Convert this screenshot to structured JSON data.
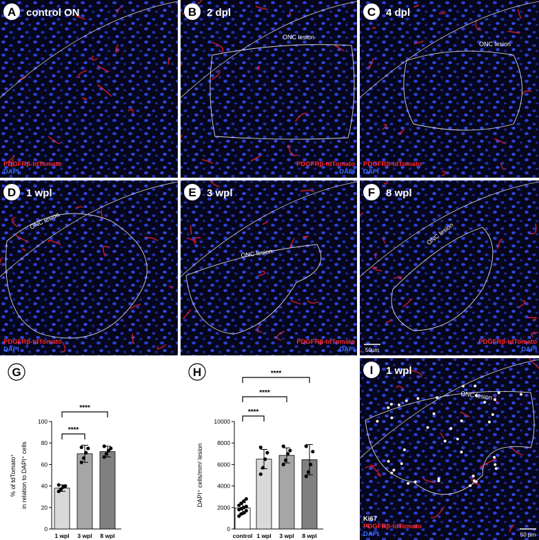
{
  "panels": [
    {
      "letter": "A",
      "title": "control ON",
      "markers": [
        "PDGFRβ-tdTomato",
        "DAPI"
      ]
    },
    {
      "letter": "B",
      "title": "2 dpl",
      "lesion_label": "ONC lesion",
      "markers": [
        "PDGFRβ-tdTomato",
        "DAPI"
      ]
    },
    {
      "letter": "C",
      "title": "4 dpl",
      "lesion_label": "ONC lesion",
      "markers": [
        "PDGFRβ-tdTomato",
        "DAPI"
      ]
    },
    {
      "letter": "D",
      "title": "1 wpl",
      "lesion_label": "ONC lesion",
      "markers": [
        "PDGFRβ-tdTomato",
        "DAPI"
      ]
    },
    {
      "letter": "E",
      "title": "3 wpl",
      "lesion_label": "ONC lesion",
      "markers": [
        "PDGFRβ-tdTomato",
        "DAPI"
      ]
    },
    {
      "letter": "F",
      "title": "8 wpl",
      "lesion_label": "ONC lesion",
      "markers": [
        "PDGFRβ-tdTomato",
        "DAPI"
      ],
      "scale_bar": "50µm"
    },
    {
      "letter": "I",
      "title": "1 wpl",
      "lesion_label": "ONC lesion",
      "markers": [
        "Ki67",
        "PDGFRβ-tdTomato",
        "DAPI"
      ],
      "scale_bar": "50 µm"
    }
  ],
  "chart_data": [
    {
      "type": "bar",
      "panel_label": "G",
      "y_label": [
        "% of tdTomato⁺",
        "in relation to DAPI⁺ cells"
      ],
      "categories": [
        "1 wpl",
        "3 wpl",
        "8 wpl"
      ],
      "values": [
        38,
        70,
        72
      ],
      "errors": [
        3,
        8,
        5
      ],
      "points": [
        [
          35,
          37,
          39,
          40,
          41
        ],
        [
          62,
          66,
          71,
          75,
          76
        ],
        [
          67,
          70,
          73,
          75,
          77
        ]
      ],
      "colors": [
        "#d9d9d9",
        "#a6a6a6",
        "#808080"
      ],
      "ylim": [
        0,
        100
      ],
      "yticks": [
        0,
        20,
        40,
        60,
        80,
        100
      ],
      "significance": [
        "****",
        "****"
      ]
    },
    {
      "type": "bar",
      "panel_label": "H",
      "y_label": [
        "DAPI⁺ cells/mm² lesion"
      ],
      "categories": [
        "control",
        "1 wpl",
        "3 wpl",
        "8 wpl"
      ],
      "values": [
        1950,
        6500,
        6850,
        6450
      ],
      "errors": [
        500,
        900,
        700,
        1400
      ],
      "points": [
        [
          1200,
          1400,
          1500,
          1700,
          1800,
          1900,
          2000,
          2100,
          2200,
          2400,
          2600,
          2800
        ],
        [
          5100,
          5700,
          6500,
          7100,
          7600
        ],
        [
          6000,
          6400,
          7000,
          7300,
          7700
        ],
        [
          4900,
          5300,
          6000,
          7200,
          7700
        ]
      ],
      "colors": [
        "#ffffff",
        "#d9d9d9",
        "#a6a6a6",
        "#808080"
      ],
      "ylim": [
        0,
        10000
      ],
      "yticks": [
        0,
        2000,
        4000,
        6000,
        8000,
        10000
      ],
      "significance": [
        "****",
        "****",
        "****"
      ]
    }
  ]
}
